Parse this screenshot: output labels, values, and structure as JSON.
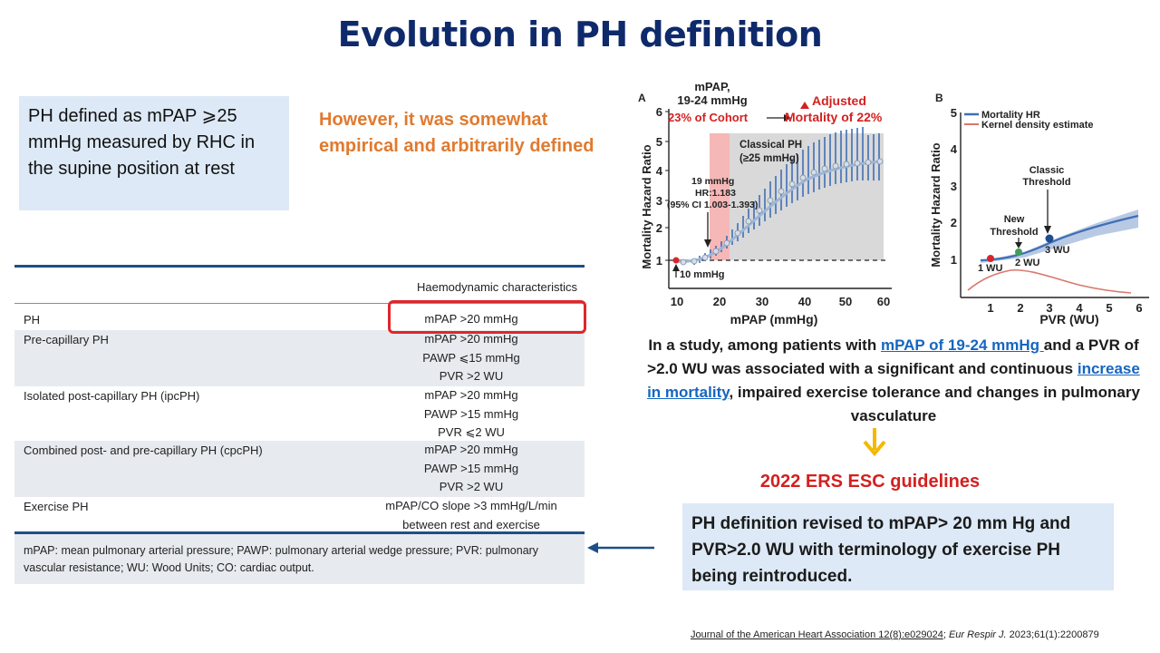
{
  "slide": {
    "title": "Evolution in PH definition",
    "definition_box": "PH defined as mPAP ⩾25 mmHg measured by RHC in the supine position at rest",
    "however_text": "However, it was somewhat empirical and arbitrarily defined"
  },
  "table": {
    "header": "Haemodynamic characteristics",
    "rows": [
      {
        "label": "PH",
        "values": [
          "mPAP >20 mmHg"
        ]
      },
      {
        "label": "Pre-capillary PH",
        "values": [
          "mPAP >20 mmHg",
          "PAWP ⩽15 mmHg",
          "PVR >2 WU"
        ]
      },
      {
        "label": "Isolated post-capillary PH (ipcPH)",
        "values": [
          "mPAP >20 mmHg",
          "PAWP >15 mmHg",
          "PVR ⩽2 WU"
        ]
      },
      {
        "label": "Combined post- and pre-capillary PH (cpcPH)",
        "values": [
          "mPAP >20 mmHg",
          "PAWP >15 mmHg",
          "PVR >2 WU"
        ]
      },
      {
        "label": "Exercise PH",
        "values": [
          "mPAP/CO slope >3 mmHg/L/min",
          "between rest and exercise"
        ]
      }
    ],
    "footnote": "mPAP: mean pulmonary arterial pressure; PAWP: pulmonary arterial wedge pressure; PVR: pulmonary vascular resistance; WU: Wood Units; CO: cardiac output."
  },
  "figure": {
    "panel_a": {
      "panel_label": "A",
      "callout_mpap_line1": "mPAP,",
      "callout_mpap_line2": "19-24 mmHg",
      "callout_cohort": "23% of Cohort",
      "callout_adjusted_line1": "Adjusted",
      "callout_adjusted_line2": "Mortality of 22%",
      "classical_line1": "Classical PH",
      "classical_line2": "(≥25 mmHg)",
      "annot_line1": "19 mmHg",
      "annot_line2": "HR:1.183",
      "annot_line3": "(95% CI 1.003-1.393)",
      "baseline_label": "10 mmHg",
      "ylabel": "Mortality Hazard Ratio",
      "xlabel": "mPAP (mmHg)",
      "xticks": [
        "10",
        "20",
        "30",
        "40",
        "50",
        "60"
      ],
      "yticks": [
        "1",
        "2",
        "3",
        "4",
        "5",
        "6"
      ]
    },
    "panel_b": {
      "panel_label": "B",
      "legend_hr": "Mortality HR",
      "legend_kde": "Kernel density estimate",
      "classic_line1": "Classic",
      "classic_line2": "Threshold",
      "new_line1": "New",
      "new_line2": "Threshold",
      "pt1": "1 WU",
      "pt2": "2 WU",
      "pt3": "3 WU",
      "ylabel": "Mortality Hazard Ratio",
      "xlabel": "PVR (WU)",
      "xticks": [
        "1",
        "2",
        "3",
        "4",
        "5",
        "6"
      ],
      "yticks": [
        "1",
        "2",
        "3",
        "4",
        "5"
      ]
    }
  },
  "study": {
    "part1": "In a study, among patients with ",
    "link1": "mPAP of 19-24 mmHg ",
    "part2": "and a PVR of >2.0 WU was associated with a significant and continuous ",
    "link2": "increase in mortality",
    "part3": ", impaired exercise tolerance and changes in pulmonary vasculature"
  },
  "guidelines": "2022 ERS ESC guidelines",
  "revised_box": "PH definition revised to mPAP> 20 mm Hg and PVR>2.0 WU with terminology of exercise PH being reintroduced.",
  "citation": {
    "journal": "Journal of the American Heart Association 12(8):e029024",
    "sep": "; ",
    "eur": "Eur Respir J.",
    "rest": " 2023;61(1):2200879"
  },
  "colors": {
    "title": "#0f2a6b",
    "orange": "#e07a2f",
    "red": "#e0262b",
    "box_bg": "#dde9f6",
    "arrow_yellow": "#f5b800"
  }
}
